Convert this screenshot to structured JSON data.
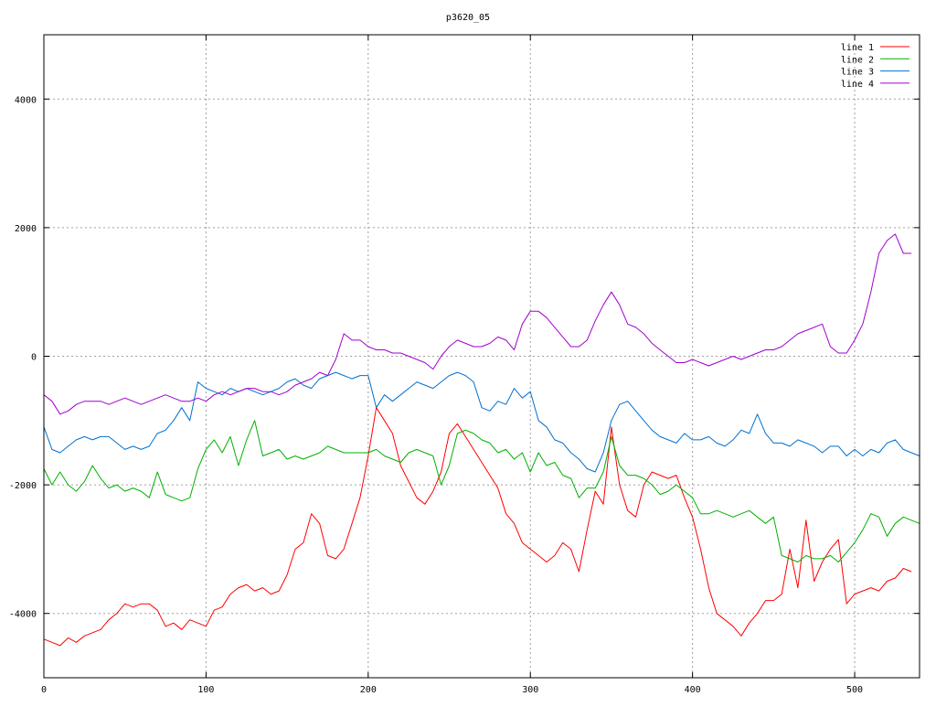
{
  "chart_data": {
    "type": "line",
    "title": "p3620_05",
    "xlabel": "",
    "ylabel": "",
    "xlim": [
      0,
      540
    ],
    "ylim": [
      -5000,
      5000
    ],
    "x_ticks": [
      0,
      100,
      200,
      300,
      400,
      500
    ],
    "y_ticks": [
      -4000,
      -2000,
      0,
      2000,
      4000
    ],
    "x_tick_labels": [
      "0",
      "100",
      "200",
      "300",
      "400",
      "500"
    ],
    "y_tick_labels": [
      "-4000",
      "-2000",
      "0",
      "2000",
      "4000"
    ],
    "grid": true,
    "legend_position": "top-right",
    "x_step": 5,
    "series": [
      {
        "name": "line 1",
        "color": "#ff0000",
        "values": [
          -4400,
          -4450,
          -4500,
          -4380,
          -4450,
          -4350,
          -4300,
          -4250,
          -4100,
          -4000,
          -3850,
          -3900,
          -3850,
          -3850,
          -3950,
          -4200,
          -4150,
          -4250,
          -4100,
          -4150,
          -4200,
          -3950,
          -3900,
          -3700,
          -3600,
          -3550,
          -3650,
          -3600,
          -3700,
          -3650,
          -3400,
          -3000,
          -2900,
          -2450,
          -2600,
          -3100,
          -3150,
          -3000,
          -2600,
          -2200,
          -1550,
          -800,
          -1000,
          -1200,
          -1700,
          -1950,
          -2200,
          -2300,
          -2100,
          -1800,
          -1200,
          -1050,
          -1250,
          -1450,
          -1650,
          -1850,
          -2050,
          -2450,
          -2600,
          -2900,
          -3000,
          -3100,
          -3200,
          -3100,
          -2900,
          -3000,
          -3350,
          -2700,
          -2100,
          -2300,
          -1100,
          -2000,
          -2400,
          -2500,
          -2000,
          -1800,
          -1850,
          -1900,
          -1850,
          -2200,
          -2500,
          -3000,
          -3600,
          -4000,
          -4100,
          -4200,
          -4350,
          -4150,
          -4000,
          -3800,
          -3800,
          -3700,
          -3000,
          -3600,
          -2550,
          -3500,
          -3200,
          -3000,
          -2850,
          -3850,
          -3700,
          -3650,
          -3600,
          -3650,
          -3500,
          -3450,
          -3300,
          -3350
        ]
      },
      {
        "name": "line 2",
        "color": "#00b000",
        "values": [
          -1750,
          -2000,
          -1800,
          -2000,
          -2100,
          -1950,
          -1700,
          -1900,
          -2050,
          -2000,
          -2100,
          -2050,
          -2100,
          -2200,
          -1800,
          -2150,
          -2200,
          -2250,
          -2200,
          -1750,
          -1450,
          -1300,
          -1500,
          -1250,
          -1700,
          -1300,
          -1000,
          -1550,
          -1500,
          -1450,
          -1600,
          -1550,
          -1600,
          -1550,
          -1500,
          -1400,
          -1450,
          -1500,
          -1500,
          -1500,
          -1500,
          -1450,
          -1550,
          -1600,
          -1650,
          -1500,
          -1450,
          -1500,
          -1550,
          -2000,
          -1700,
          -1200,
          -1150,
          -1200,
          -1300,
          -1350,
          -1500,
          -1450,
          -1600,
          -1500,
          -1800,
          -1500,
          -1700,
          -1650,
          -1850,
          -1900,
          -2200,
          -2050,
          -2050,
          -1800,
          -1250,
          -1700,
          -1850,
          -1850,
          -1900,
          -2000,
          -2150,
          -2100,
          -2000,
          -2100,
          -2200,
          -2450,
          -2450,
          -2400,
          -2450,
          -2500,
          -2450,
          -2400,
          -2500,
          -2600,
          -2500,
          -3100,
          -3150,
          -3200,
          -3100,
          -3150,
          -3150,
          -3100,
          -3200,
          -3050,
          -2900,
          -2700,
          -2450,
          -2500,
          -2800,
          -2600,
          -2500,
          -2550,
          -2600
        ]
      },
      {
        "name": "line 3",
        "color": "#0070d0",
        "values": [
          -1100,
          -1450,
          -1500,
          -1400,
          -1300,
          -1250,
          -1300,
          -1250,
          -1250,
          -1350,
          -1450,
          -1400,
          -1450,
          -1400,
          -1200,
          -1150,
          -1000,
          -800,
          -1000,
          -400,
          -500,
          -550,
          -600,
          -500,
          -550,
          -500,
          -550,
          -600,
          -550,
          -500,
          -400,
          -350,
          -450,
          -500,
          -350,
          -300,
          -250,
          -300,
          -350,
          -300,
          -300,
          -800,
          -600,
          -700,
          -600,
          -500,
          -400,
          -450,
          -500,
          -400,
          -300,
          -250,
          -300,
          -400,
          -800,
          -850,
          -700,
          -750,
          -500,
          -650,
          -550,
          -1000,
          -1100,
          -1300,
          -1350,
          -1500,
          -1600,
          -1750,
          -1800,
          -1500,
          -1000,
          -750,
          -700,
          -850,
          -1000,
          -1150,
          -1250,
          -1300,
          -1350,
          -1200,
          -1300,
          -1300,
          -1250,
          -1350,
          -1400,
          -1300,
          -1150,
          -1200,
          -900,
          -1200,
          -1350,
          -1350,
          -1400,
          -1300,
          -1350,
          -1400,
          -1500,
          -1400,
          -1400,
          -1550,
          -1450,
          -1550,
          -1450,
          -1500,
          -1350,
          -1300,
          -1450,
          -1500,
          -1550
        ]
      },
      {
        "name": "line 4",
        "color": "#a000d0",
        "values": [
          -600,
          -700,
          -900,
          -850,
          -750,
          -700,
          -700,
          -700,
          -750,
          -700,
          -650,
          -700,
          -750,
          -700,
          -650,
          -600,
          -650,
          -700,
          -700,
          -650,
          -700,
          -600,
          -550,
          -600,
          -550,
          -500,
          -500,
          -550,
          -550,
          -600,
          -550,
          -450,
          -400,
          -350,
          -250,
          -300,
          -50,
          350,
          250,
          250,
          150,
          100,
          100,
          50,
          50,
          0,
          -50,
          -100,
          -200,
          0,
          150,
          250,
          200,
          150,
          150,
          200,
          300,
          250,
          100,
          500,
          700,
          700,
          600,
          450,
          300,
          150,
          150,
          250,
          550,
          800,
          1000,
          800,
          500,
          450,
          350,
          200,
          100,
          0,
          -100,
          -100,
          -50,
          -100,
          -150,
          -100,
          -50,
          0,
          -50,
          0,
          50,
          100,
          100,
          150,
          250,
          350,
          400,
          450,
          500,
          150,
          50,
          50,
          250,
          500,
          1000,
          1600,
          1800,
          1900,
          1600,
          1600
        ]
      }
    ]
  }
}
